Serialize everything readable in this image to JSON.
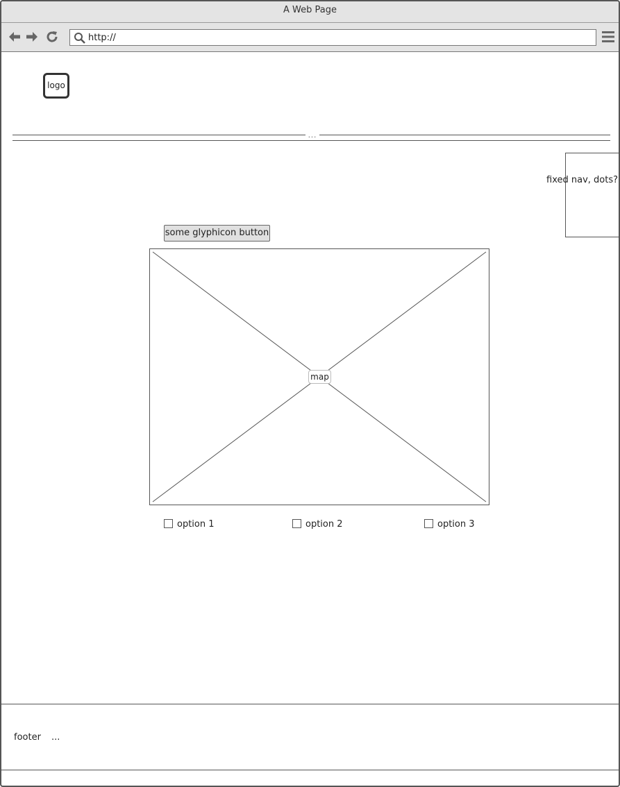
{
  "window": {
    "title": "A Web Page"
  },
  "toolbar": {
    "back_icon": "arrow-left-icon",
    "forward_icon": "arrow-right-icon",
    "reload_icon": "reload-icon",
    "search_icon": "search-icon",
    "address": "http://",
    "menu_icon": "hamburger-menu-icon"
  },
  "header": {
    "logo": "logo",
    "separator": "..."
  },
  "fixed_nav": {
    "label": "fixed nav, dots?"
  },
  "main": {
    "button_label": "some glyphicon button",
    "map_label": "map",
    "options": [
      {
        "label": "option 1",
        "checked": false
      },
      {
        "label": "option 2",
        "checked": false
      },
      {
        "label": "option 3",
        "checked": false
      }
    ]
  },
  "footer": {
    "label": "footer",
    "more": "..."
  },
  "colors": {
    "chrome": "#e4e4e4",
    "border": "#555555",
    "button": "#e0e0e0"
  }
}
